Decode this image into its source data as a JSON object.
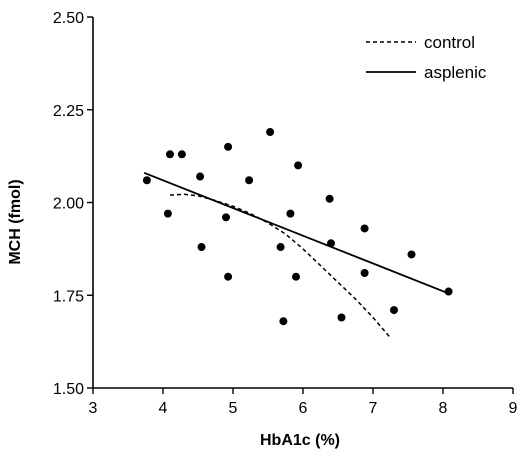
{
  "chart_data": {
    "type": "scatter",
    "title": "",
    "xlabel": "HbA1c (%)",
    "ylabel": "MCH (fmol)",
    "xlim": [
      3,
      9
    ],
    "ylim": [
      1.5,
      2.5
    ],
    "x_ticks": [
      "3",
      "4",
      "5",
      "6",
      "7",
      "8",
      "9"
    ],
    "y_ticks": [
      "1.50",
      "1.75",
      "2.00",
      "2.25",
      "2.50"
    ],
    "grid": false,
    "legend_position": "top-right",
    "points": [
      {
        "x": 3.77,
        "y": 2.06
      },
      {
        "x": 4.07,
        "y": 1.97
      },
      {
        "x": 4.1,
        "y": 2.13
      },
      {
        "x": 4.27,
        "y": 2.13
      },
      {
        "x": 4.53,
        "y": 2.07
      },
      {
        "x": 4.55,
        "y": 1.88
      },
      {
        "x": 4.9,
        "y": 1.96
      },
      {
        "x": 4.93,
        "y": 2.15
      },
      {
        "x": 4.93,
        "y": 1.8
      },
      {
        "x": 5.23,
        "y": 2.06
      },
      {
        "x": 5.53,
        "y": 2.19
      },
      {
        "x": 5.68,
        "y": 1.88
      },
      {
        "x": 5.72,
        "y": 1.68
      },
      {
        "x": 5.82,
        "y": 1.97
      },
      {
        "x": 5.9,
        "y": 1.8
      },
      {
        "x": 5.93,
        "y": 2.1
      },
      {
        "x": 6.38,
        "y": 2.01
      },
      {
        "x": 6.4,
        "y": 1.89
      },
      {
        "x": 6.55,
        "y": 1.69
      },
      {
        "x": 6.88,
        "y": 1.93
      },
      {
        "x": 6.88,
        "y": 1.81
      },
      {
        "x": 7.3,
        "y": 1.71
      },
      {
        "x": 7.55,
        "y": 1.86
      },
      {
        "x": 8.08,
        "y": 1.76
      }
    ],
    "series": [
      {
        "name": "control",
        "style": "dashed",
        "x": [
          4.1,
          4.3,
          4.5,
          4.75,
          5.0,
          5.25,
          5.5,
          5.75,
          6.0,
          6.25,
          6.5,
          6.75,
          7.0,
          7.25
        ],
        "y": [
          2.02,
          2.022,
          2.018,
          2.005,
          1.99,
          1.97,
          1.945,
          1.915,
          1.875,
          1.83,
          1.785,
          1.74,
          1.69,
          1.635
        ]
      },
      {
        "name": "asplenic",
        "style": "solid",
        "x": [
          3.73,
          8.08
        ],
        "y": [
          2.08,
          1.755
        ]
      }
    ]
  }
}
